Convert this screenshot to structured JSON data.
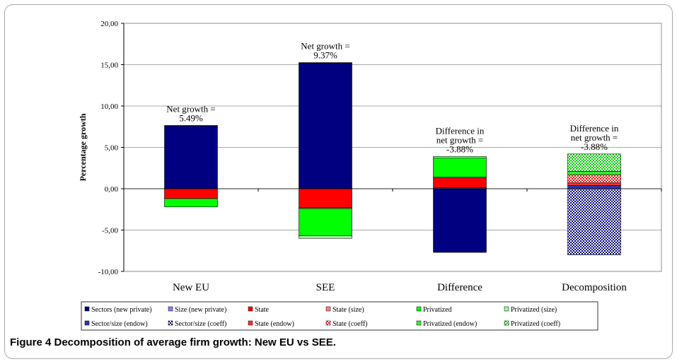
{
  "caption": "Figure 4 Decomposition of average firm growth: New EU vs SEE.",
  "chart_data": {
    "type": "bar",
    "stacked": true,
    "ylabel": "Percentage growth",
    "ylim": [
      -10,
      20
    ],
    "yticks": [
      -10,
      -5,
      0,
      5,
      10,
      15,
      20
    ],
    "ytick_labels": [
      "-10,00",
      "-5,00",
      "0,00",
      "5,00",
      "10,00",
      "15,00",
      "20,00"
    ],
    "grid": true,
    "legend_position": "bottom",
    "categories": [
      "New EU",
      "SEE",
      "Difference",
      "Decomposition"
    ],
    "series": [
      {
        "name": "Sectors (new private)",
        "color": "#000080",
        "pattern": "solid",
        "values": [
          7.6,
          15.2,
          -7.7,
          0
        ]
      },
      {
        "name": "Size (new private)",
        "color": "#8080ff",
        "pattern": "solid",
        "values": [
          0.05,
          0.05,
          0.1,
          0
        ]
      },
      {
        "name": "State",
        "color": "#ff0000",
        "pattern": "solid",
        "values": [
          -1.2,
          -2.3,
          1.2,
          0
        ]
      },
      {
        "name": "State (size)",
        "color": "#ff8080",
        "pattern": "solid",
        "values": [
          0,
          -0.1,
          0.1,
          0
        ]
      },
      {
        "name": "Privatized",
        "color": "#00ff00",
        "pattern": "solid",
        "values": [
          -1.0,
          -3.3,
          2.3,
          0
        ]
      },
      {
        "name": "Privatized (size)",
        "color": "#99ff99",
        "pattern": "solid",
        "values": [
          0,
          -0.3,
          0.2,
          0
        ]
      },
      {
        "name": "Sector/size (endow)",
        "color": "#3333aa",
        "pattern": "solid",
        "values": [
          0,
          0,
          0,
          0.4
        ]
      },
      {
        "name": "Sector/size (coeff)",
        "color": "#000080",
        "pattern": "check",
        "values": [
          0,
          0,
          0,
          -8.0
        ]
      },
      {
        "name": "State (endow)",
        "color": "#ff3030",
        "pattern": "solid",
        "values": [
          0,
          0,
          0,
          0.3
        ]
      },
      {
        "name": "State (coeff)",
        "color": "#ff0000",
        "pattern": "check",
        "values": [
          0,
          0,
          0,
          1.0
        ]
      },
      {
        "name": "Privatized (endow)",
        "color": "#33ee33",
        "pattern": "solid",
        "values": [
          0,
          0,
          0,
          0.4
        ]
      },
      {
        "name": "Privatized (coeff)",
        "color": "#00cc00",
        "pattern": "check",
        "values": [
          0,
          0,
          0,
          2.1
        ]
      }
    ],
    "annotations": [
      {
        "category": "New EU",
        "lines": [
          "Net growth =",
          "5.49%"
        ]
      },
      {
        "category": "SEE",
        "lines": [
          "Net growth =",
          "9.37%"
        ]
      },
      {
        "category": "Difference",
        "lines": [
          "Difference in",
          "net growth =",
          "-3.88%"
        ]
      },
      {
        "category": "Decomposition",
        "lines": [
          "Difference in",
          "net growth =",
          "-3.88%"
        ]
      }
    ]
  }
}
